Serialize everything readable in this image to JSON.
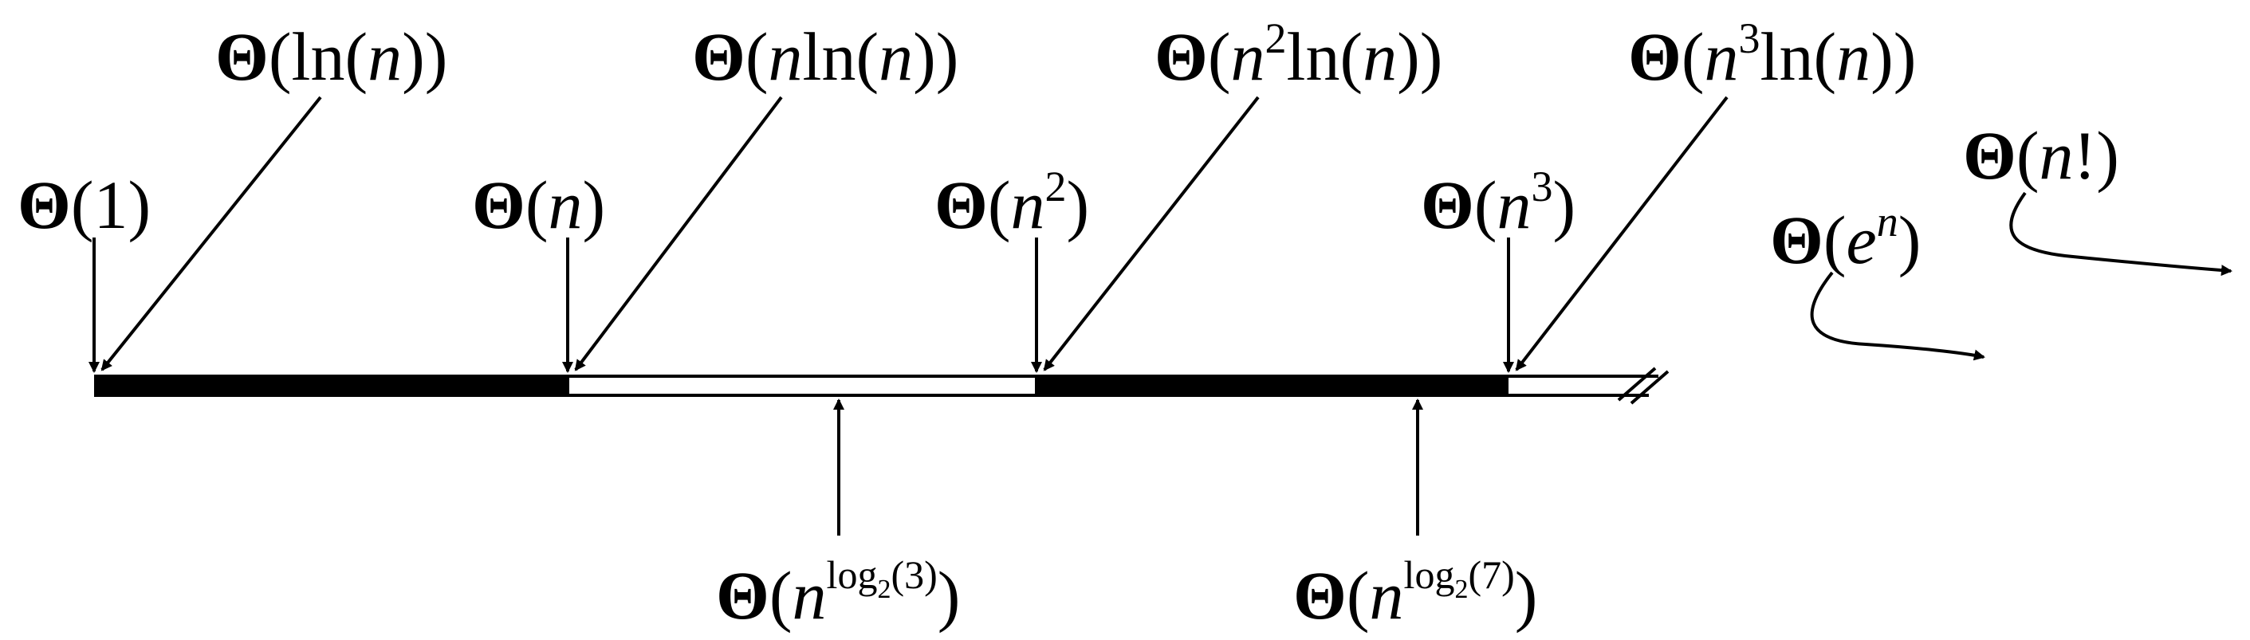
{
  "diagram": {
    "theta_symbol": "Θ",
    "above_labels": {
      "constant": {
        "open": "(",
        "body": "1",
        "close": ")"
      },
      "log": {
        "open": "(",
        "pre": "ln(",
        "var": "n",
        "post": "))"
      },
      "linear": {
        "open": "(",
        "var": "n",
        "close": ")"
      },
      "n_log": {
        "open": "(",
        "var": "n",
        "mid": "ln(",
        "var2": "n",
        "post": "))"
      },
      "quadratic": {
        "open": "(",
        "var": "n",
        "sup": "2",
        "close": ")"
      },
      "n2_log": {
        "open": "(",
        "var": "n",
        "sup": "2",
        "mid": "ln(",
        "var2": "n",
        "post": "))"
      },
      "cubic": {
        "open": "(",
        "var": "n",
        "sup": "3",
        "close": ")"
      },
      "n3_log": {
        "open": "(",
        "var": "n",
        "sup": "3",
        "mid": "ln(",
        "var2": "n",
        "post": "))"
      }
    },
    "exponential_labels": {
      "exp": {
        "open": "(",
        "base": "e",
        "sup": "n",
        "close": ")"
      },
      "factorial": {
        "open": "(",
        "var": "n",
        "bang": "!",
        "close": ")"
      }
    },
    "below_labels": {
      "karatsuba": {
        "open": "(",
        "var": "n",
        "sup_log": "log",
        "sub": "2",
        "arg": "(3)",
        "close": ")"
      },
      "strassen": {
        "open": "(",
        "var": "n",
        "sup_log": "log",
        "sub": "2",
        "arg": "(7)",
        "close": ")"
      }
    },
    "colors": {
      "ink": "#000000",
      "paper": "#ffffff"
    }
  }
}
